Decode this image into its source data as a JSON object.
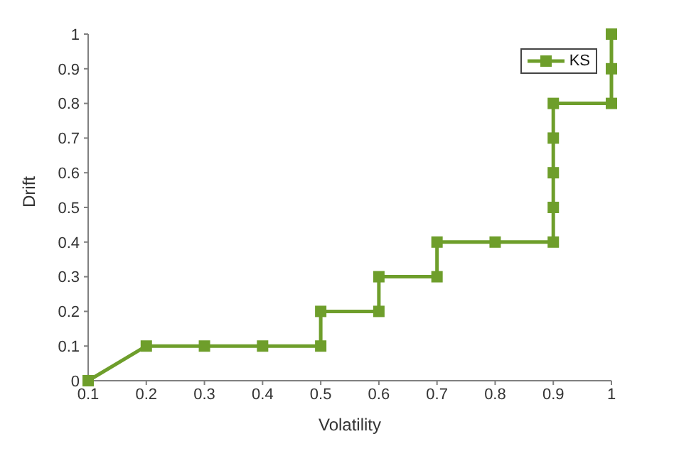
{
  "chart_data": {
    "type": "line",
    "xlabel": "Volatility",
    "ylabel": "Drift",
    "marker": "square",
    "line_style": "solid",
    "legend": "top right",
    "grid": false,
    "xlim": [
      0.1,
      1
    ],
    "xticks": [
      0.1,
      0.2,
      0.3,
      0.4,
      0.5,
      0.6,
      0.7,
      0.8,
      0.9,
      1
    ],
    "ylim": [
      0,
      1
    ],
    "yticks": [
      0,
      0.1,
      0.2,
      0.3,
      0.4,
      0.5,
      0.6,
      0.7,
      0.8,
      0.9,
      1
    ],
    "series": [
      {
        "name": "KS",
        "color": "#6e9e2b",
        "x": [
          0.1,
          0.2,
          0.3,
          0.4,
          0.5,
          0.5,
          0.6,
          0.6,
          0.7,
          0.7,
          0.8,
          0.9,
          0.9,
          0.9,
          0.9,
          0.9,
          1,
          1,
          1
        ],
        "values": [
          0,
          0.1,
          0.1,
          0.1,
          0.1,
          0.2,
          0.2,
          0.3,
          0.3,
          0.4,
          0.4,
          0.4,
          0.5,
          0.6,
          0.7,
          0.8,
          0.8,
          0.9,
          1
        ]
      }
    ]
  }
}
